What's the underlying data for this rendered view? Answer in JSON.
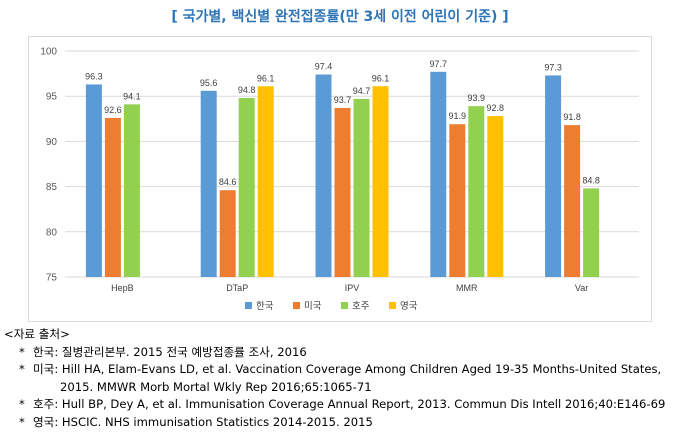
{
  "title": "[ 국가별, 백신별 완전접종률(만 3세 이전 어린이 기준) ]",
  "chart_data": {
    "type": "bar",
    "title": "",
    "xlabel": "",
    "ylabel": "",
    "categories": [
      "HepB",
      "DTaP",
      "IPV",
      "MMR",
      "Var"
    ],
    "ylim": [
      75,
      100
    ],
    "yticks": [
      75,
      80,
      85,
      90,
      95,
      100
    ],
    "grid": true,
    "legend_position": "bottom",
    "series": [
      {
        "name": "한국",
        "color": "#5B9BD5",
        "values": [
          96.3,
          95.6,
          97.4,
          97.7,
          97.3
        ]
      },
      {
        "name": "미국",
        "color": "#ED7D31",
        "values": [
          92.6,
          84.6,
          93.7,
          91.9,
          91.8
        ]
      },
      {
        "name": "호주",
        "color": "#92D050",
        "values": [
          94.1,
          94.8,
          94.7,
          93.9,
          84.8
        ]
      },
      {
        "name": "영국",
        "color": "#FFC000",
        "values": [
          null,
          96.1,
          96.1,
          92.8,
          null
        ]
      }
    ]
  },
  "sources": {
    "heading": "<자료 출처>",
    "bullet": "*",
    "items": [
      "한국: 질병관리본부. 2015 전국 예방접종률 조사, 2016",
      "미국: Hill HA, Elam-Evans LD, et al. Vaccination Coverage Among Children Aged 19-35 Months-United States, 2015. MMWR Morb Mortal Wkly Rep 2016;65:1065-71",
      "호주: Hull BP, Dey A, et al. Immunisation Coverage Annual Report, 2013. Commun Dis Intell 2016;40:E146-69",
      "영국: HSCIC. NHS immunisation Statistics 2014-2015. 2015"
    ]
  }
}
